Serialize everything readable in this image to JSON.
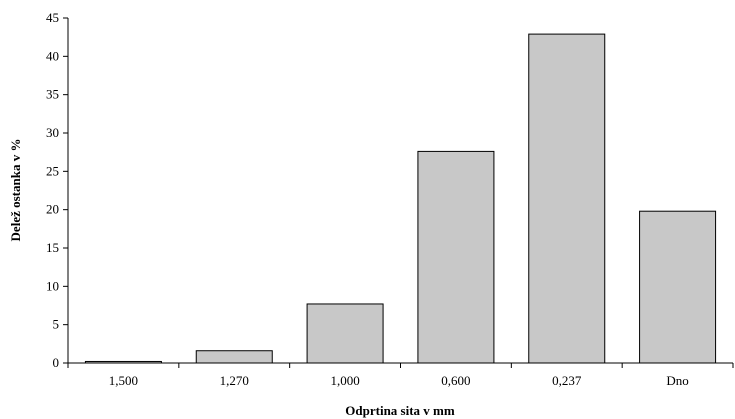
{
  "chart_data": {
    "type": "bar",
    "title": "",
    "xlabel": "Odprtina sita v mm",
    "ylabel": "Delež ostanka v %",
    "categories": [
      "1,500",
      "1,270",
      "1,000",
      "0,600",
      "0,237",
      "Dno"
    ],
    "values": [
      0.2,
      1.6,
      7.7,
      27.6,
      42.9,
      19.8
    ],
    "ylim": [
      0,
      45
    ],
    "yticks": [
      0,
      5,
      10,
      15,
      20,
      25,
      30,
      35,
      40,
      45
    ],
    "grid": false,
    "legend": "none",
    "bar_color": "#c8c8c8",
    "bar_edge_color": "#000000"
  }
}
